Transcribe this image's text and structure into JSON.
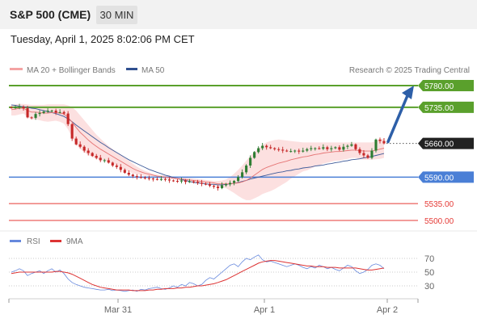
{
  "header": {
    "title": "S&P 500 (CME)",
    "interval": "30 MIN",
    "datetime": "Tuesday, April 1, 2025 8:02:06 PM CET"
  },
  "legend": {
    "ma20_bollinger": "MA 20 + Bollinger Bands",
    "ma50": "MA 50",
    "rsi": "RSI",
    "ma9": "9MA",
    "credit": "Research © 2025 Trading Central"
  },
  "colors": {
    "candle_up": "#2e7d32",
    "candle_down": "#c62828",
    "bollinger_fill": "#fbd5d5",
    "ma20": "#e57373",
    "ma50": "#3d5a99",
    "resistance": "#5aa02c",
    "pivot": "#4a7fd6",
    "support": "#e53935",
    "rsi": "#6688dd",
    "rsi_ma9": "#dd3333",
    "arrow": "#2d5fa8",
    "current_price_box": "#222222"
  },
  "chart_data": {
    "type": "candlestick",
    "ylim": [
      5480,
      5800
    ],
    "x_ticks": [
      "Mar 31",
      "Apr 1",
      "Apr 2"
    ],
    "levels": [
      {
        "name": "resistance-2",
        "value": 5780,
        "label": "5780.00"
      },
      {
        "name": "resistance-1",
        "value": 5735,
        "label": "5735.00"
      },
      {
        "name": "last-price",
        "value": 5660,
        "label": "5660.00"
      },
      {
        "name": "pivot",
        "value": 5590,
        "label": "5590.00"
      },
      {
        "name": "support-1",
        "value": 5535,
        "label": "5535.00"
      },
      {
        "name": "support-2",
        "value": 5500,
        "label": "5500.00"
      }
    ],
    "forecast_target": 5780,
    "close": [
      5734,
      5735,
      5736,
      5733,
      5714,
      5713,
      5721,
      5723,
      5726,
      5728,
      5728,
      5724,
      5725,
      5722,
      5700,
      5670,
      5658,
      5653,
      5645,
      5640,
      5634,
      5630,
      5625,
      5625,
      5620,
      5614,
      5611,
      5605,
      5599,
      5595,
      5592,
      5590,
      5589,
      5588,
      5587,
      5586,
      5585,
      5586,
      5585,
      5583,
      5582,
      5581,
      5583,
      5580,
      5581,
      5580,
      5578,
      5576,
      5575,
      5572,
      5570,
      5567,
      5573,
      5575,
      5578,
      5582,
      5590,
      5600,
      5614,
      5630,
      5642,
      5650,
      5655,
      5652,
      5650,
      5648,
      5647,
      5645,
      5644,
      5644,
      5645,
      5643,
      5645,
      5648,
      5650,
      5650,
      5649,
      5652,
      5648,
      5650,
      5652,
      5647,
      5653,
      5655,
      5658,
      5648,
      5640,
      5635,
      5630,
      5645,
      5668,
      5665,
      5660
    ],
    "ma20": [
      5730,
      5731,
      5733,
      5733,
      5728,
      5725,
      5725,
      5724,
      5723,
      5723,
      5724,
      5724,
      5723,
      5721,
      5714,
      5704,
      5693,
      5683,
      5675,
      5667,
      5660,
      5654,
      5648,
      5643,
      5638,
      5633,
      5628,
      5623,
      5618,
      5613,
      5608,
      5604,
      5601,
      5598,
      5596,
      5594,
      5592,
      5591,
      5590,
      5589,
      5588,
      5587,
      5586,
      5585,
      5584,
      5583,
      5582,
      5581,
      5580,
      5579,
      5578,
      5576,
      5576,
      5576,
      5576,
      5577,
      5578,
      5580,
      5583,
      5588,
      5594,
      5600,
      5606,
      5610,
      5613,
      5616,
      5619,
      5621,
      5623,
      5626,
      5628,
      5630,
      5632,
      5633,
      5635,
      5637,
      5638,
      5640,
      5641,
      5642,
      5643,
      5643,
      5644,
      5645,
      5646,
      5646,
      5645,
      5644,
      5644,
      5644,
      5646,
      5648,
      5650
    ],
    "bollinger_upper": [
      5740,
      5741,
      5742,
      5742,
      5741,
      5740,
      5740,
      5740,
      5740,
      5741,
      5741,
      5741,
      5741,
      5741,
      5739,
      5735,
      5728,
      5718,
      5708,
      5698,
      5688,
      5678,
      5670,
      5662,
      5655,
      5648,
      5642,
      5637,
      5630,
      5624,
      5618,
      5612,
      5607,
      5603,
      5600,
      5597,
      5595,
      5594,
      5594,
      5592,
      5591,
      5590,
      5590,
      5589,
      5588,
      5587,
      5586,
      5585,
      5584,
      5583,
      5582,
      5582,
      5583,
      5585,
      5590,
      5597,
      5605,
      5614,
      5624,
      5634,
      5642,
      5650,
      5657,
      5662,
      5665,
      5667,
      5668,
      5667,
      5666,
      5665,
      5664,
      5663,
      5662,
      5662,
      5662,
      5662,
      5662,
      5662,
      5662,
      5662,
      5662,
      5662,
      5662,
      5662,
      5662,
      5662,
      5662,
      5662,
      5662,
      5662,
      5665,
      5668,
      5670
    ],
    "bollinger_lower": [
      5718,
      5718,
      5720,
      5722,
      5715,
      5710,
      5710,
      5708,
      5706,
      5705,
      5706,
      5707,
      5705,
      5701,
      5689,
      5672,
      5658,
      5648,
      5642,
      5636,
      5632,
      5628,
      5626,
      5624,
      5621,
      5618,
      5614,
      5609,
      5605,
      5602,
      5598,
      5596,
      5594,
      5593,
      5592,
      5591,
      5589,
      5588,
      5586,
      5586,
      5585,
      5584,
      5582,
      5581,
      5580,
      5579,
      5578,
      5577,
      5576,
      5575,
      5574,
      5570,
      5569,
      5567,
      5562,
      5557,
      5551,
      5546,
      5542,
      5542,
      5546,
      5550,
      5555,
      5558,
      5561,
      5565,
      5570,
      5575,
      5580,
      5587,
      5592,
      5597,
      5602,
      5604,
      5608,
      5612,
      5614,
      5618,
      5620,
      5622,
      5624,
      5624,
      5626,
      5628,
      5630,
      5630,
      5628,
      5626,
      5626,
      5626,
      5627,
      5628,
      5630
    ],
    "ma50": [
      5740,
      5739,
      5737,
      5736,
      5735,
      5733,
      5732,
      5730,
      5728,
      5726,
      5724,
      5722,
      5719,
      5716,
      5711,
      5705,
      5698,
      5692,
      5686,
      5680,
      5674,
      5668,
      5662,
      5657,
      5651,
      5646,
      5641,
      5636,
      5631,
      5626,
      5622,
      5618,
      5614,
      5610,
      5606,
      5603,
      5600,
      5597,
      5594,
      5592,
      5589,
      5587,
      5585,
      5583,
      5581,
      5579,
      5578,
      5577,
      5576,
      5575,
      5575,
      5574,
      5574,
      5575,
      5576,
      5577,
      5579,
      5581,
      5583,
      5586,
      5588,
      5590,
      5592,
      5594,
      5596,
      5598,
      5600,
      5601,
      5603,
      5604,
      5606,
      5607,
      5609,
      5610,
      5611,
      5613,
      5614,
      5615,
      5617,
      5618,
      5620,
      5621,
      5623,
      5624,
      5626,
      5627,
      5628,
      5630,
      5631,
      5633,
      5635,
      5637,
      5639
    ],
    "rsi": {
      "ylim": [
        15,
        85
      ],
      "ticks": [
        70,
        50,
        30
      ],
      "rsi": [
        50,
        52,
        55,
        52,
        45,
        48,
        50,
        52,
        48,
        52,
        55,
        50,
        53,
        48,
        40,
        35,
        32,
        30,
        28,
        27,
        26,
        25,
        24,
        24,
        25,
        23,
        24,
        23,
        22,
        23,
        24,
        22,
        25,
        24,
        26,
        27,
        28,
        26,
        25,
        27,
        30,
        28,
        32,
        30,
        35,
        33,
        30,
        32,
        38,
        42,
        40,
        45,
        50,
        55,
        60,
        62,
        58,
        65,
        70,
        68,
        72,
        75,
        68,
        65,
        66,
        64,
        62,
        60,
        58,
        60,
        62,
        60,
        57,
        55,
        58,
        56,
        60,
        58,
        55,
        57,
        54,
        52,
        56,
        60,
        58,
        52,
        48,
        50,
        54,
        60,
        62,
        60,
        55
      ],
      "ma9": [
        48,
        49,
        50,
        50,
        50,
        50,
        50,
        50,
        50,
        50,
        50,
        51,
        51,
        50,
        49,
        47,
        44,
        41,
        38,
        35,
        32,
        30,
        28,
        27,
        26,
        25,
        24,
        24,
        24,
        24,
        23,
        23,
        23,
        23,
        24,
        24,
        25,
        25,
        26,
        26,
        26,
        27,
        27,
        28,
        28,
        29,
        30,
        30,
        31,
        32,
        33,
        35,
        37,
        39,
        42,
        45,
        48,
        51,
        54,
        57,
        60,
        63,
        65,
        66,
        67,
        67,
        66,
        65,
        64,
        63,
        62,
        61,
        60,
        59,
        59,
        58,
        58,
        58,
        57,
        57,
        57,
        56,
        56,
        56,
        56,
        56,
        55,
        54,
        53,
        53,
        54,
        55,
        56
      ]
    }
  }
}
